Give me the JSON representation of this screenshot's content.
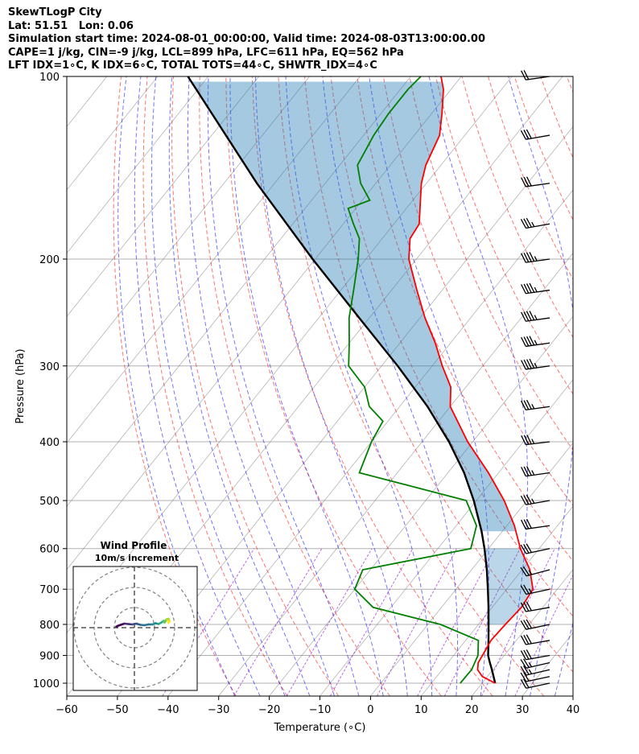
{
  "header": {
    "line1": "SkewTLogP City",
    "line2": "Lat: 51.51   Lon: 0.06",
    "line3": "Simulation start time: 2024-08-01_00:00:00, Valid time: 2024-08-03T13:00:00.00",
    "line4": "CAPE=1 j/kg, CIN=-9 j/kg, LCL=899 hPa, LFC=611 hPa, EQ=562 hPa",
    "line5": "LFT IDX=1∘C, K IDX=6∘C, TOTAL TOTS=44∘C, SHWTR_IDX=4∘C"
  },
  "chart_data": {
    "type": "skewt",
    "xlabel": "Temperature (∘C)",
    "ylabel": "Pressure (hPa)",
    "xlim": [
      -60,
      40
    ],
    "ylim": [
      1050,
      100
    ],
    "x_ticks": [
      -60,
      -50,
      -40,
      -30,
      -20,
      -10,
      0,
      10,
      20,
      30,
      40
    ],
    "y_ticks": [
      1000,
      900,
      800,
      700,
      600,
      500,
      400,
      300,
      200,
      100
    ],
    "colors": {
      "temperature": "#ff0000",
      "dewpoint": "#008000",
      "parcel": "#000000",
      "cape_fill": "#1f77b4",
      "dry_adiabat": "#ff0000",
      "moist_adiabat": "#0000ff",
      "mixing_ratio": "#9400d3",
      "isotherm": "#808080"
    },
    "temperature": {
      "p": [
        1000,
        975,
        950,
        925,
        900,
        850,
        800,
        750,
        700,
        650,
        600,
        550,
        500,
        450,
        400,
        350,
        325,
        300,
        275,
        250,
        225,
        200,
        185,
        175,
        160,
        150,
        140,
        125,
        115,
        105,
        100
      ],
      "t": [
        22.6,
        19,
        17,
        16,
        15.7,
        15,
        15.3,
        15.8,
        15.2,
        11.5,
        6.3,
        1.5,
        -4.5,
        -12,
        -21,
        -30,
        -33,
        -38,
        -43,
        -49,
        -55,
        -61.5,
        -64.5,
        -65,
        -68.5,
        -71,
        -73,
        -75,
        -78,
        -81.5,
        -84
      ]
    },
    "dewpoint": {
      "p": [
        1000,
        950,
        900,
        850,
        800,
        750,
        700,
        650,
        600,
        550,
        500,
        450,
        400,
        370,
        350,
        325,
        300,
        275,
        250,
        225,
        200,
        185,
        175,
        165,
        160,
        150,
        140,
        125,
        115,
        105,
        100
      ],
      "t": [
        15.7,
        15.8,
        14.8,
        12.5,
        2.5,
        -13.5,
        -20,
        -21.5,
        -3.5,
        -6,
        -12,
        -37.5,
        -40,
        -41,
        -46,
        -50,
        -56.5,
        -60,
        -64,
        -67.5,
        -71.5,
        -74.5,
        -78,
        -81.5,
        -78.5,
        -83,
        -86.5,
        -88,
        -88.5,
        -88.5,
        -88
      ]
    },
    "parcel": {
      "p": [
        1000,
        950,
        925,
        900,
        850,
        800,
        750,
        700,
        650,
        600,
        562,
        500,
        450,
        400,
        350,
        300,
        250,
        200,
        150,
        100
      ],
      "t": [
        22.6,
        19.8,
        18.3,
        16.8,
        14.5,
        12.0,
        9.3,
        6.3,
        3.0,
        -0.8,
        -4.1,
        -10.5,
        -16.8,
        -24.7,
        -34.5,
        -46.8,
        -62.0,
        -80.5,
        -103.5,
        -134.0
      ]
    },
    "wind_barbs": {
      "p": [
        1000,
        975,
        950,
        925,
        900,
        850,
        800,
        750,
        700,
        650,
        600,
        550,
        500,
        450,
        400,
        350,
        300,
        275,
        250,
        225,
        200,
        175,
        150,
        125,
        100
      ],
      "speed_kt": [
        20,
        22,
        25,
        25,
        30,
        30,
        30,
        30,
        25,
        25,
        30,
        30,
        35,
        35,
        35,
        35,
        45,
        45,
        45,
        45,
        45,
        35,
        30,
        30,
        20
      ],
      "dir_deg": [
        258,
        258,
        257,
        257,
        260,
        260,
        258,
        260,
        258,
        255,
        258,
        262,
        260,
        262,
        263,
        262,
        262,
        262,
        262,
        262,
        262,
        260,
        262,
        260,
        262
      ]
    },
    "hodograph": {
      "title": "Wind Profile",
      "subtitle": "10m/s increment",
      "u": [
        -9,
        -8,
        -6.5,
        -5,
        -3,
        -1,
        1,
        3,
        5,
        7,
        9,
        10.5,
        12,
        13.5,
        14.5,
        15,
        15.5,
        16,
        17,
        17.5,
        17,
        16.5
      ],
      "v": [
        0.5,
        1,
        1.5,
        2,
        1.8,
        1.6,
        2,
        1.4,
        1.2,
        1.6,
        1.6,
        2.2,
        1.8,
        2.6,
        3.4,
        2.6,
        3.4,
        4.2,
        4.4,
        3.2,
        2.4,
        3.4
      ]
    }
  }
}
